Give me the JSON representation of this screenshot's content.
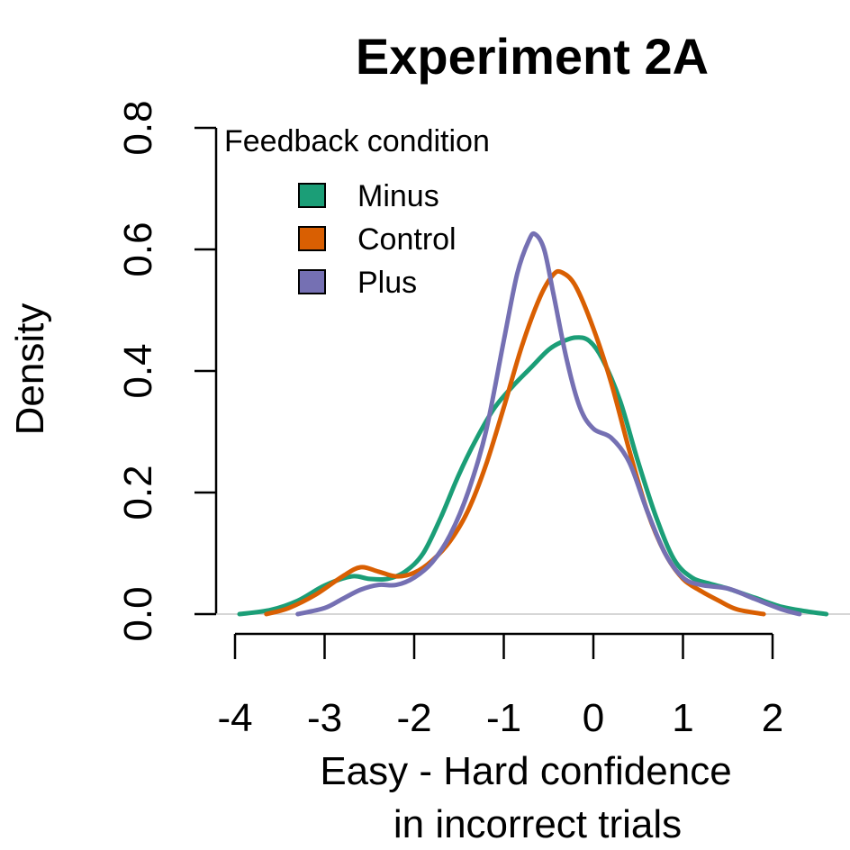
{
  "chart_data": {
    "type": "line",
    "title": "Experiment 2A",
    "xlabel_lines": [
      "Easy - Hard confidence",
      "in incorrect trials"
    ],
    "ylabel": "Density",
    "xlim": [
      -4,
      2
    ],
    "ylim": [
      0,
      0.8
    ],
    "xticks": [
      -4,
      -3,
      -2,
      -1,
      0,
      1,
      2
    ],
    "yticks": [
      0.0,
      0.2,
      0.4,
      0.6,
      0.8
    ],
    "xtick_labels": [
      "-4",
      "-3",
      "-2",
      "-1",
      "0",
      "1",
      "2"
    ],
    "ytick_labels": [
      "0.0",
      "0.2",
      "0.4",
      "0.6",
      "0.8"
    ],
    "legend": {
      "title": "Feedback condition",
      "position": "top-left",
      "entries": [
        "Minus",
        "Control",
        "Plus"
      ]
    },
    "series": [
      {
        "name": "Minus",
        "color": "#1b9e77",
        "x": [
          -3.95,
          -3.6,
          -3.3,
          -3.0,
          -2.7,
          -2.5,
          -2.3,
          -2.1,
          -1.9,
          -1.7,
          -1.5,
          -1.3,
          -1.1,
          -0.9,
          -0.7,
          -0.5,
          -0.35,
          -0.2,
          -0.05,
          0.1,
          0.3,
          0.5,
          0.7,
          0.9,
          1.1,
          1.3,
          1.5,
          1.8,
          2.1,
          2.4,
          2.6
        ],
        "y": [
          0.0,
          0.007,
          0.022,
          0.047,
          0.062,
          0.058,
          0.058,
          0.07,
          0.1,
          0.16,
          0.23,
          0.29,
          0.34,
          0.375,
          0.405,
          0.435,
          0.448,
          0.455,
          0.45,
          0.42,
          0.35,
          0.25,
          0.16,
          0.09,
          0.06,
          0.05,
          0.042,
          0.027,
          0.012,
          0.004,
          0.0
        ]
      },
      {
        "name": "Control",
        "color": "#d95f02",
        "x": [
          -3.65,
          -3.4,
          -3.1,
          -2.8,
          -2.6,
          -2.4,
          -2.2,
          -2.0,
          -1.8,
          -1.6,
          -1.4,
          -1.2,
          -1.0,
          -0.8,
          -0.6,
          -0.45,
          -0.35,
          -0.2,
          0.0,
          0.2,
          0.4,
          0.6,
          0.8,
          1.0,
          1.2,
          1.4,
          1.6,
          1.9
        ],
        "y": [
          0.0,
          0.01,
          0.032,
          0.062,
          0.077,
          0.07,
          0.062,
          0.068,
          0.088,
          0.12,
          0.17,
          0.245,
          0.34,
          0.44,
          0.52,
          0.558,
          0.562,
          0.54,
          0.47,
          0.38,
          0.27,
          0.17,
          0.1,
          0.058,
          0.038,
          0.022,
          0.008,
          0.0
        ]
      },
      {
        "name": "Plus",
        "color": "#7570b3",
        "x": [
          -3.3,
          -3.0,
          -2.8,
          -2.6,
          -2.4,
          -2.2,
          -2.0,
          -1.8,
          -1.6,
          -1.4,
          -1.2,
          -1.0,
          -0.85,
          -0.72,
          -0.65,
          -0.55,
          -0.45,
          -0.3,
          -0.15,
          0.0,
          0.2,
          0.4,
          0.6,
          0.8,
          1.0,
          1.2,
          1.5,
          1.8,
          2.1,
          2.3
        ],
        "y": [
          0.0,
          0.01,
          0.025,
          0.04,
          0.048,
          0.048,
          0.06,
          0.085,
          0.13,
          0.2,
          0.3,
          0.45,
          0.56,
          0.615,
          0.625,
          0.6,
          0.53,
          0.42,
          0.34,
          0.305,
          0.29,
          0.25,
          0.17,
          0.1,
          0.06,
          0.048,
          0.042,
          0.025,
          0.008,
          0.0
        ]
      }
    ]
  }
}
